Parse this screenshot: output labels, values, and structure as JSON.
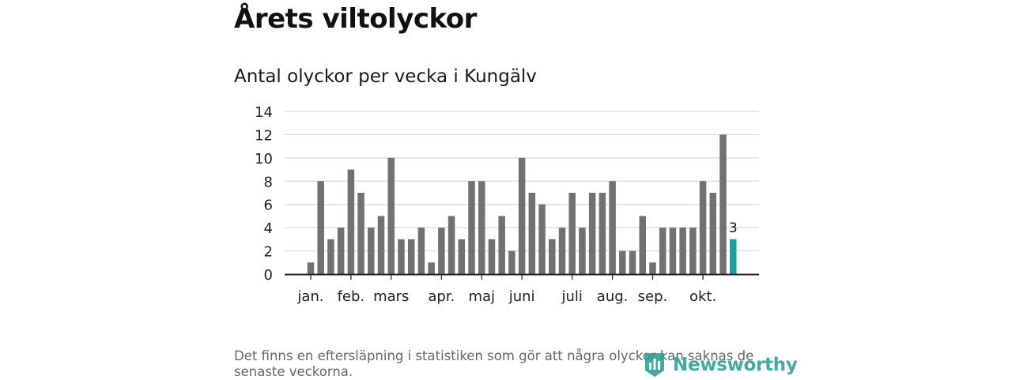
{
  "header": {
    "title": "Årets viltolyckor"
  },
  "chart_data": {
    "type": "bar",
    "title": "Antal olyckor per vecka i Kungälv",
    "xlabel": "",
    "ylabel": "",
    "ylim": [
      0,
      14
    ],
    "yticks": [
      0,
      2,
      4,
      6,
      8,
      10,
      12,
      14
    ],
    "grid": true,
    "x": [
      1,
      2,
      3,
      4,
      5,
      6,
      7,
      8,
      9,
      10,
      11,
      12,
      13,
      14,
      15,
      16,
      17,
      18,
      19,
      20,
      21,
      22,
      23,
      24,
      25,
      26,
      27,
      28,
      29,
      30,
      31,
      32,
      33,
      34,
      35,
      36,
      37,
      38,
      39,
      40,
      41,
      42,
      43
    ],
    "values": [
      1,
      8,
      3,
      4,
      9,
      7,
      4,
      5,
      10,
      3,
      3,
      4,
      1,
      4,
      5,
      3,
      8,
      8,
      3,
      5,
      2,
      10,
      7,
      6,
      3,
      4,
      7,
      4,
      7,
      7,
      8,
      2,
      2,
      5,
      1,
      4,
      4,
      4,
      4,
      8,
      7,
      12,
      3
    ],
    "month_labels": [
      {
        "label": "jan.",
        "at": 1
      },
      {
        "label": "feb.",
        "at": 5
      },
      {
        "label": "mars",
        "at": 9
      },
      {
        "label": "apr.",
        "at": 14
      },
      {
        "label": "maj",
        "at": 18
      },
      {
        "label": "juni",
        "at": 22
      },
      {
        "label": "juli",
        "at": 27
      },
      {
        "label": "aug.",
        "at": 31
      },
      {
        "label": "sep.",
        "at": 35
      },
      {
        "label": "okt.",
        "at": 40
      }
    ],
    "highlight": {
      "index": 42,
      "label": "3"
    },
    "colors": {
      "bar": "#717073",
      "highlight": "#16a19b",
      "grid": "#d9d9d9",
      "axis": "#222222"
    }
  },
  "footnote": "Det finns en eftersläpning i statistiken som gör att några olyckor kan saknas de senaste veckorna.",
  "logo": {
    "text": "Newsworthy",
    "icon": "newsworthy-logo-icon",
    "color": "#2a9f94"
  }
}
